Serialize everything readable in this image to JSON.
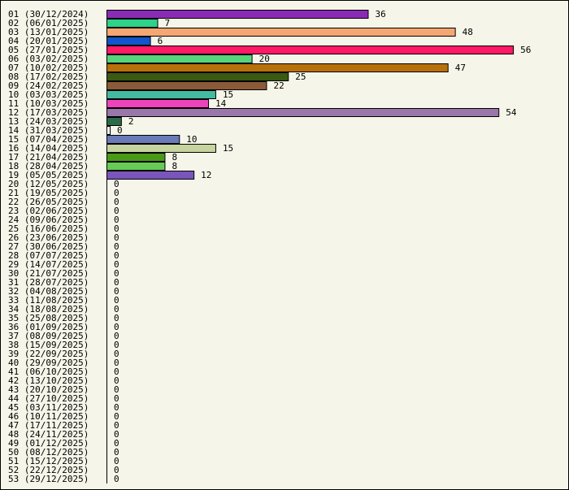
{
  "chart_data": {
    "type": "bar",
    "orientation": "horizontal",
    "title": "",
    "xlabel": "",
    "ylabel": "",
    "grid": false,
    "legend": "none",
    "xlim": [
      0,
      56
    ],
    "categories": [
      "01 (30/12/2024)",
      "02 (06/01/2025)",
      "03 (13/01/2025)",
      "04 (20/01/2025)",
      "05 (27/01/2025)",
      "06 (03/02/2025)",
      "07 (10/02/2025)",
      "08 (17/02/2025)",
      "09 (24/02/2025)",
      "10 (03/03/2025)",
      "11 (10/03/2025)",
      "12 (17/03/2025)",
      "13 (24/03/2025)",
      "14 (31/03/2025)",
      "15 (07/04/2025)",
      "16 (14/04/2025)",
      "17 (21/04/2025)",
      "18 (28/04/2025)",
      "19 (05/05/2025)",
      "20 (12/05/2025)",
      "21 (19/05/2025)",
      "22 (26/05/2025)",
      "23 (02/06/2025)",
      "24 (09/06/2025)",
      "25 (16/06/2025)",
      "26 (23/06/2025)",
      "27 (30/06/2025)",
      "28 (07/07/2025)",
      "29 (14/07/2025)",
      "30 (21/07/2025)",
      "31 (28/07/2025)",
      "32 (04/08/2025)",
      "33 (11/08/2025)",
      "34 (18/08/2025)",
      "35 (25/08/2025)",
      "36 (01/09/2025)",
      "37 (08/09/2025)",
      "38 (15/09/2025)",
      "39 (22/09/2025)",
      "40 (29/09/2025)",
      "41 (06/10/2025)",
      "42 (13/10/2025)",
      "43 (20/10/2025)",
      "44 (27/10/2025)",
      "45 (03/11/2025)",
      "46 (10/11/2025)",
      "47 (17/11/2025)",
      "48 (24/11/2025)",
      "49 (01/12/2025)",
      "50 (08/12/2025)",
      "51 (15/12/2025)",
      "52 (22/12/2025)",
      "53 (29/12/2025)"
    ],
    "values": [
      36,
      7,
      48,
      6,
      56,
      20,
      47,
      25,
      22,
      15,
      14,
      54,
      2,
      0,
      10,
      15,
      8,
      8,
      12,
      0,
      0,
      0,
      0,
      0,
      0,
      0,
      0,
      0,
      0,
      0,
      0,
      0,
      0,
      0,
      0,
      0,
      0,
      0,
      0,
      0,
      0,
      0,
      0,
      0,
      0,
      0,
      0,
      0,
      0,
      0,
      0,
      0,
      0
    ],
    "colors": [
      "#8a2bb5",
      "#2ed38a",
      "#f4a772",
      "#1155cc",
      "#ff1a66",
      "#55d47a",
      "#b8700a",
      "#3a5a12",
      "#8a5a3a",
      "#44bba0",
      "#ee44bb",
      "#9977aa",
      "#2a6a4a",
      "#cccccc",
      "#6a7ab8",
      "#c8d4a0",
      "#4a9a1a",
      "#66cc55",
      "#7a55bb"
    ],
    "zero_color": "#ffffff",
    "axis_color": "#000000"
  }
}
